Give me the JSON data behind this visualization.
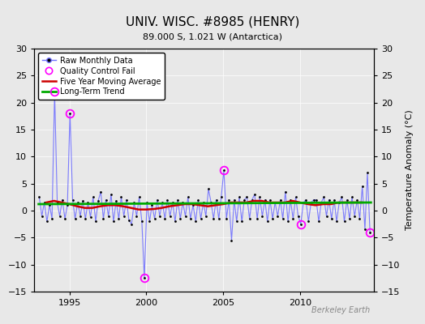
{
  "title": "UNIV. WISC. #8985 (HENRY)",
  "subtitle": "89.000 S, 1.021 W (Antarctica)",
  "ylabel": "Temperature Anomaly (°C)",
  "watermark": "Berkeley Earth",
  "ylim": [
    -15,
    30
  ],
  "yticks": [
    -15,
    -10,
    -5,
    0,
    5,
    10,
    15,
    20,
    25,
    30
  ],
  "xlim_start": 1992.7,
  "xlim_end": 2014.8,
  "xticks": [
    1995,
    2000,
    2005,
    2010
  ],
  "bg_color": "#e8e8e8",
  "plot_bg_color": "#e8e8e8",
  "raw_line_color": "#7070ff",
  "raw_dot_color": "#000000",
  "moving_avg_color": "#cc0000",
  "trend_color": "#00aa00",
  "qc_fail_color": "#ff00ff",
  "raw_data_times": [
    1993.04,
    1993.21,
    1993.37,
    1993.54,
    1993.71,
    1993.87,
    1994.04,
    1994.21,
    1994.37,
    1994.54,
    1994.71,
    1994.87,
    1995.04,
    1995.21,
    1995.37,
    1995.54,
    1995.71,
    1995.87,
    1996.04,
    1996.21,
    1996.37,
    1996.54,
    1996.71,
    1996.87,
    1997.04,
    1997.21,
    1997.37,
    1997.54,
    1997.71,
    1997.87,
    1998.04,
    1998.21,
    1998.37,
    1998.54,
    1998.71,
    1998.87,
    1999.04,
    1999.21,
    1999.37,
    1999.54,
    1999.71,
    1999.87,
    2000.04,
    2000.21,
    2000.37,
    2000.54,
    2000.71,
    2000.87,
    2001.04,
    2001.21,
    2001.37,
    2001.54,
    2001.71,
    2001.87,
    2002.04,
    2002.21,
    2002.37,
    2002.54,
    2002.71,
    2002.87,
    2003.04,
    2003.21,
    2003.37,
    2003.54,
    2003.71,
    2003.87,
    2004.04,
    2004.21,
    2004.37,
    2004.54,
    2004.71,
    2004.87,
    2005.04,
    2005.21,
    2005.37,
    2005.54,
    2005.71,
    2005.87,
    2006.04,
    2006.21,
    2006.37,
    2006.54,
    2006.71,
    2006.87,
    2007.04,
    2007.21,
    2007.37,
    2007.54,
    2007.71,
    2007.87,
    2008.04,
    2008.21,
    2008.37,
    2008.54,
    2008.71,
    2008.87,
    2009.04,
    2009.21,
    2009.37,
    2009.54,
    2009.71,
    2009.87,
    2010.04,
    2010.21,
    2010.37,
    2010.54,
    2010.71,
    2010.87,
    2011.04,
    2011.21,
    2011.37,
    2011.54,
    2011.71,
    2011.87,
    2012.04,
    2012.21,
    2012.37,
    2012.54,
    2012.71,
    2012.87,
    2013.04,
    2013.21,
    2013.37,
    2013.54,
    2013.71,
    2013.87,
    2014.04,
    2014.21,
    2014.37,
    2014.54
  ],
  "raw_data_values": [
    2.5,
    -1.0,
    1.5,
    -2.0,
    1.0,
    -1.5,
    22.0,
    1.5,
    -1.0,
    2.0,
    -1.5,
    1.0,
    18.0,
    2.0,
    -1.5,
    1.5,
    -1.0,
    1.8,
    -1.5,
    1.5,
    -1.2,
    2.5,
    -2.0,
    1.8,
    3.5,
    -1.5,
    2.0,
    -1.0,
    3.0,
    -2.0,
    1.8,
    -1.5,
    2.5,
    -1.0,
    2.0,
    -1.8,
    -2.5,
    1.5,
    -1.0,
    2.5,
    -2.0,
    -12.5,
    1.5,
    -2.0,
    1.0,
    -1.5,
    2.0,
    -1.0,
    1.5,
    -1.5,
    2.0,
    -1.0,
    1.5,
    -2.0,
    2.0,
    -1.5,
    1.5,
    -1.0,
    2.5,
    -1.5,
    1.0,
    -2.0,
    2.0,
    -1.5,
    1.5,
    -1.0,
    4.0,
    1.5,
    -1.5,
    2.0,
    -1.5,
    2.5,
    7.5,
    -1.5,
    2.0,
    -5.5,
    2.0,
    -2.0,
    2.5,
    -2.0,
    2.0,
    2.5,
    -1.5,
    2.0,
    3.0,
    -1.5,
    2.5,
    -1.0,
    2.0,
    -2.0,
    2.0,
    -1.5,
    1.5,
    -1.0,
    2.0,
    -1.5,
    3.5,
    -2.0,
    2.0,
    -1.5,
    2.5,
    -1.0,
    -2.5,
    1.5,
    2.0,
    -2.0,
    1.5,
    2.0,
    2.0,
    -2.0,
    1.5,
    2.5,
    -1.0,
    2.0,
    -1.5,
    2.0,
    -2.0,
    1.5,
    2.5,
    -2.0,
    2.0,
    -1.5,
    2.5,
    -1.0,
    2.0,
    -1.5,
    4.5,
    -3.5,
    7.0,
    -4.0
  ],
  "qc_fail_times": [
    1994.04,
    1995.04,
    1999.87,
    2005.04,
    2010.04,
    2014.54
  ],
  "qc_fail_values": [
    22.0,
    18.0,
    -12.5,
    7.5,
    -2.5,
    -4.0
  ],
  "moving_avg_times": [
    1993.5,
    1994.0,
    1994.5,
    1995.0,
    1995.5,
    1996.0,
    1996.5,
    1997.0,
    1997.5,
    1998.0,
    1998.5,
    1999.0,
    1999.5,
    2000.0,
    2000.5,
    2001.0,
    2001.5,
    2002.0,
    2002.5,
    2003.0,
    2003.5,
    2004.0,
    2004.5,
    2005.0,
    2005.5,
    2006.0,
    2006.5,
    2007.0,
    2007.5,
    2008.0,
    2008.5,
    2009.0,
    2009.5,
    2010.0,
    2010.5,
    2011.0,
    2011.5,
    2012.0,
    2012.5,
    2013.0,
    2013.5,
    2014.0
  ],
  "moving_avg_values": [
    1.5,
    1.8,
    1.5,
    1.2,
    0.8,
    0.5,
    0.5,
    0.8,
    1.0,
    1.0,
    0.8,
    0.5,
    0.2,
    0.2,
    0.3,
    0.5,
    0.8,
    1.0,
    1.2,
    1.2,
    1.0,
    0.8,
    1.0,
    1.2,
    1.5,
    1.5,
    1.5,
    1.8,
    1.8,
    1.5,
    1.5,
    1.5,
    1.8,
    1.5,
    1.2,
    1.0,
    1.2,
    1.2,
    1.5,
    1.5,
    1.5,
    1.5
  ],
  "trend_times": [
    1993.0,
    2014.6
  ],
  "trend_values": [
    1.2,
    1.5
  ]
}
